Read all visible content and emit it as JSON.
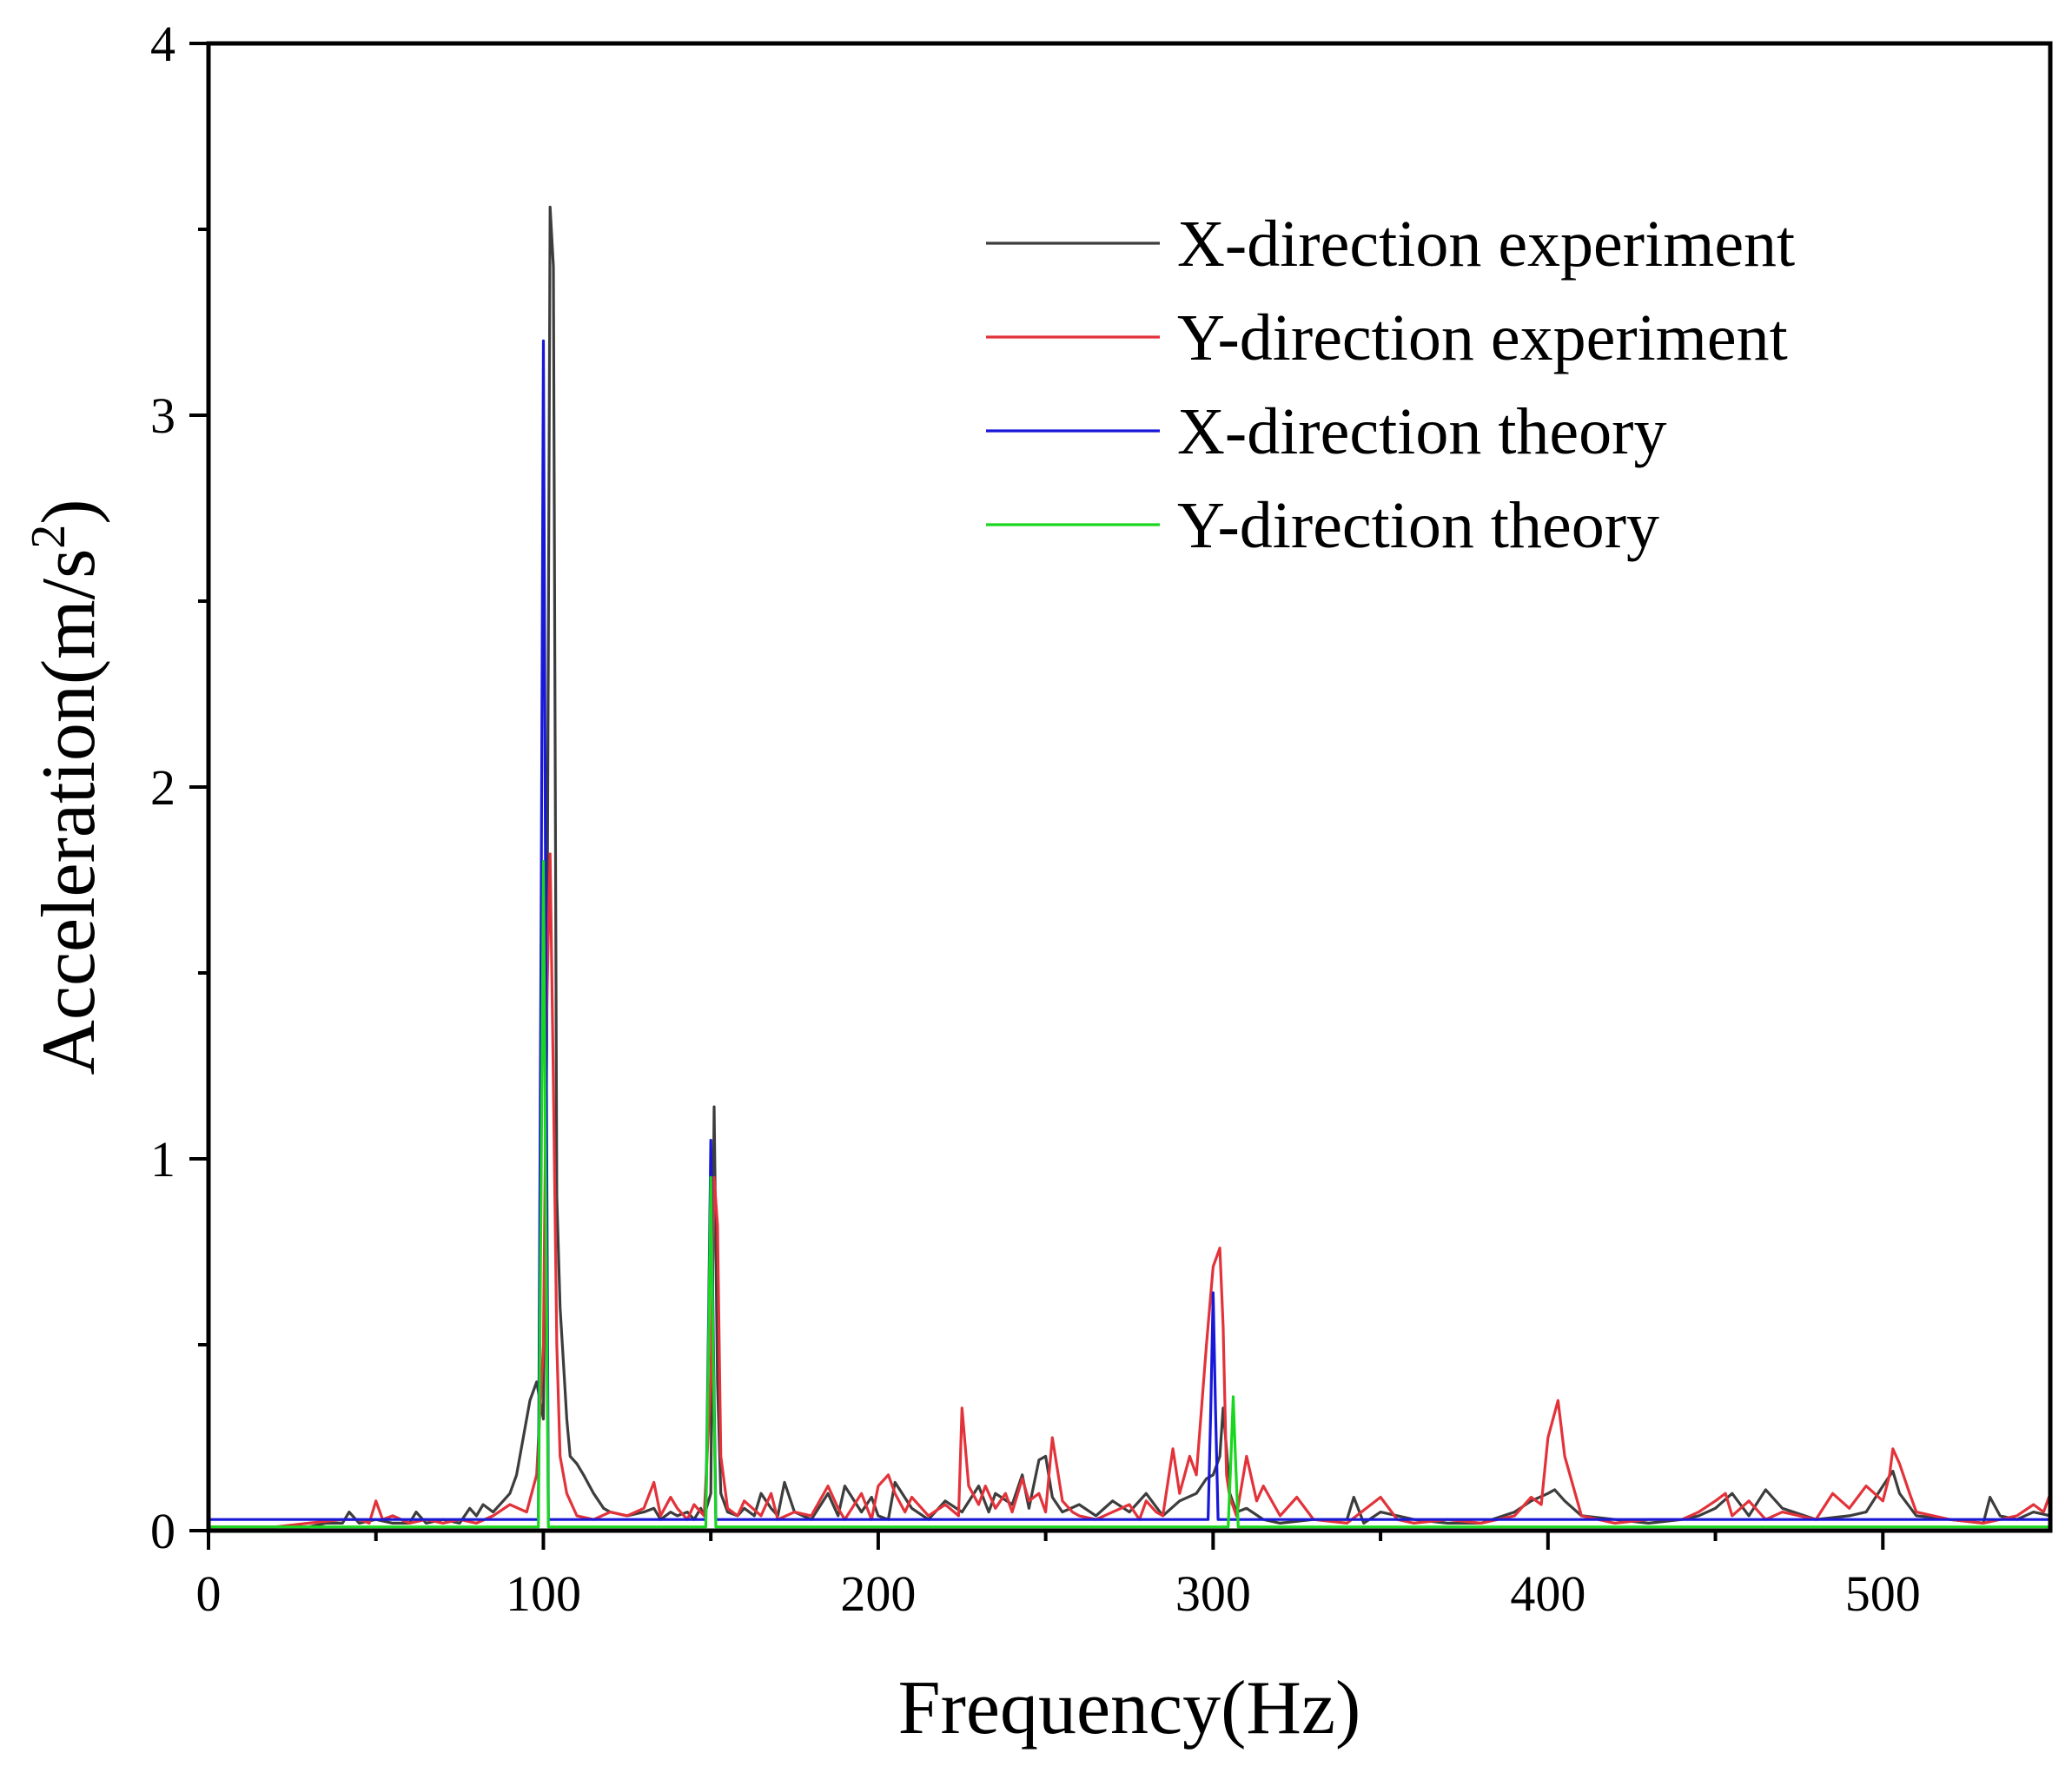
{
  "chart_data": {
    "type": "line",
    "title": "",
    "xlabel": "Frequency(Hz)",
    "ylabel_main": "Acceleration(m/s",
    "ylabel_sup": "2",
    "ylabel_close": ")",
    "xlim": [
      0,
      550
    ],
    "ylim": [
      0,
      4
    ],
    "xticks": [
      0,
      100,
      200,
      300,
      400,
      500
    ],
    "xtick_labels": [
      "0",
      "100",
      "200",
      "300",
      "400",
      "500"
    ],
    "xminor": [
      50,
      150,
      250,
      350,
      450
    ],
    "yticks": [
      0,
      1,
      2,
      3,
      4
    ],
    "ytick_labels": [
      "0",
      "1",
      "2",
      "3",
      "4"
    ],
    "yminor": [
      0.5,
      1.5,
      2.5,
      3.5
    ],
    "legend_position": "top-right",
    "series": [
      {
        "name": "X-direction experiment",
        "color": "#3d3d3d",
        "x": [
          0,
          5,
          10,
          15,
          20,
          25,
          30,
          35,
          40,
          42,
          45,
          50,
          55,
          60,
          62,
          65,
          70,
          75,
          78,
          80,
          82,
          85,
          88,
          90,
          92,
          94,
          96,
          98,
          100,
          101,
          102,
          103,
          104,
          105,
          106,
          107,
          108,
          110,
          112,
          115,
          118,
          120,
          125,
          130,
          133,
          135,
          138,
          140,
          143,
          145,
          147,
          148,
          150,
          151,
          152,
          153,
          155,
          158,
          160,
          163,
          165,
          168,
          170,
          172,
          175,
          180,
          185,
          188,
          190,
          195,
          198,
          200,
          203,
          205,
          210,
          215,
          220,
          225,
          230,
          233,
          235,
          240,
          243,
          245,
          248,
          250,
          252,
          255,
          260,
          265,
          270,
          275,
          280,
          285,
          290,
          295,
          298,
          300,
          302,
          303,
          304,
          305,
          307,
          310,
          315,
          320,
          330,
          340,
          342,
          345,
          350,
          360,
          370,
          380,
          390,
          395,
          400,
          402,
          405,
          410,
          420,
          430,
          440,
          445,
          450,
          455,
          460,
          465,
          470,
          480,
          490,
          495,
          500,
          503,
          505,
          510,
          520,
          530,
          532,
          535,
          540,
          545,
          550
        ],
        "y": [
          0.01,
          0.01,
          0.01,
          0.01,
          0.01,
          0.01,
          0.01,
          0.02,
          0.02,
          0.05,
          0.02,
          0.03,
          0.02,
          0.02,
          0.05,
          0.02,
          0.03,
          0.02,
          0.06,
          0.04,
          0.07,
          0.05,
          0.08,
          0.1,
          0.15,
          0.25,
          0.35,
          0.4,
          0.3,
          1.3,
          3.56,
          3.4,
          0.9,
          0.6,
          0.45,
          0.3,
          0.2,
          0.18,
          0.15,
          0.1,
          0.06,
          0.05,
          0.04,
          0.05,
          0.06,
          0.03,
          0.05,
          0.04,
          0.05,
          0.03,
          0.06,
          0.04,
          0.1,
          1.14,
          0.4,
          0.1,
          0.05,
          0.04,
          0.06,
          0.04,
          0.1,
          0.06,
          0.04,
          0.13,
          0.05,
          0.03,
          0.1,
          0.04,
          0.12,
          0.05,
          0.09,
          0.04,
          0.03,
          0.13,
          0.06,
          0.03,
          0.08,
          0.05,
          0.12,
          0.05,
          0.1,
          0.07,
          0.15,
          0.06,
          0.19,
          0.2,
          0.09,
          0.05,
          0.07,
          0.04,
          0.08,
          0.05,
          0.1,
          0.04,
          0.08,
          0.1,
          0.14,
          0.15,
          0.2,
          0.33,
          0.22,
          0.1,
          0.05,
          0.06,
          0.03,
          0.02,
          0.03,
          0.03,
          0.09,
          0.02,
          0.05,
          0.03,
          0.02,
          0.02,
          0.05,
          0.08,
          0.1,
          0.11,
          0.08,
          0.04,
          0.03,
          0.02,
          0.03,
          0.04,
          0.06,
          0.1,
          0.04,
          0.11,
          0.06,
          0.03,
          0.04,
          0.05,
          0.12,
          0.16,
          0.1,
          0.04,
          0.03,
          0.02,
          0.09,
          0.04,
          0.03,
          0.05,
          0.04
        ]
      },
      {
        "name": "Y-direction experiment",
        "color": "#e2333a",
        "x": [
          0,
          10,
          20,
          30,
          40,
          45,
          48,
          50,
          52,
          55,
          60,
          65,
          70,
          75,
          80,
          85,
          90,
          95,
          98,
          100,
          101,
          102,
          103,
          104,
          105,
          107,
          110,
          115,
          120,
          125,
          130,
          133,
          135,
          138,
          140,
          143,
          145,
          148,
          150,
          151,
          152,
          153,
          155,
          158,
          160,
          165,
          168,
          170,
          175,
          180,
          185,
          188,
          190,
          195,
          198,
          200,
          203,
          205,
          208,
          210,
          215,
          220,
          224,
          225,
          227,
          230,
          232,
          235,
          238,
          240,
          243,
          245,
          248,
          250,
          252,
          255,
          258,
          260,
          265,
          270,
          275,
          278,
          280,
          283,
          285,
          288,
          290,
          293,
          295,
          298,
          300,
          302,
          303,
          304,
          305,
          307,
          310,
          313,
          315,
          320,
          325,
          330,
          340,
          350,
          355,
          360,
          370,
          380,
          390,
          395,
          398,
          400,
          403,
          405,
          410,
          420,
          430,
          440,
          445,
          450,
          453,
          455,
          460,
          465,
          470,
          480,
          485,
          490,
          495,
          500,
          502,
          503,
          505,
          508,
          510,
          520,
          530,
          540,
          545,
          548,
          550
        ],
        "y": [
          0.01,
          0.01,
          0.01,
          0.02,
          0.03,
          0.03,
          0.02,
          0.08,
          0.03,
          0.04,
          0.02,
          0.03,
          0.02,
          0.03,
          0.02,
          0.04,
          0.07,
          0.05,
          0.15,
          0.5,
          1.4,
          1.82,
          1.2,
          0.5,
          0.2,
          0.1,
          0.04,
          0.03,
          0.05,
          0.04,
          0.06,
          0.13,
          0.04,
          0.09,
          0.06,
          0.03,
          0.07,
          0.04,
          0.4,
          0.95,
          0.82,
          0.2,
          0.06,
          0.04,
          0.08,
          0.04,
          0.1,
          0.03,
          0.05,
          0.04,
          0.12,
          0.06,
          0.03,
          0.1,
          0.03,
          0.12,
          0.15,
          0.1,
          0.05,
          0.09,
          0.04,
          0.07,
          0.04,
          0.33,
          0.12,
          0.07,
          0.12,
          0.06,
          0.1,
          0.05,
          0.14,
          0.08,
          0.1,
          0.05,
          0.25,
          0.08,
          0.05,
          0.04,
          0.03,
          0.05,
          0.07,
          0.03,
          0.08,
          0.05,
          0.04,
          0.22,
          0.1,
          0.2,
          0.15,
          0.5,
          0.71,
          0.76,
          0.55,
          0.15,
          0.09,
          0.04,
          0.2,
          0.08,
          0.12,
          0.04,
          0.09,
          0.03,
          0.02,
          0.09,
          0.03,
          0.02,
          0.03,
          0.02,
          0.04,
          0.09,
          0.07,
          0.25,
          0.35,
          0.2,
          0.04,
          0.02,
          0.03,
          0.03,
          0.05,
          0.08,
          0.1,
          0.04,
          0.08,
          0.03,
          0.05,
          0.03,
          0.1,
          0.06,
          0.12,
          0.08,
          0.15,
          0.22,
          0.18,
          0.1,
          0.05,
          0.03,
          0.02,
          0.04,
          0.07,
          0.05,
          0.1
        ]
      },
      {
        "name": "X-direction theory",
        "color": "#1818d8",
        "x": [
          0,
          98.5,
          99.3,
          100,
          100.7,
          101.5,
          148.5,
          149.3,
          150,
          150.7,
          151.5,
          298.5,
          299.3,
          300,
          300.7,
          301.5,
          550
        ],
        "y": [
          0.03,
          0.03,
          1.6,
          3.2,
          1.6,
          0.03,
          0.03,
          0.55,
          1.05,
          0.55,
          0.03,
          0.03,
          0.33,
          0.64,
          0.33,
          0.03,
          0.03
        ]
      },
      {
        "name": "Y-direction theory",
        "color": "#19d61f",
        "x": [
          0,
          98.5,
          99.3,
          100,
          100.7,
          101.5,
          148.5,
          149.3,
          150,
          150.7,
          151.5,
          304.5,
          305.3,
          306,
          306.7,
          307.5,
          550
        ],
        "y": [
          0.01,
          0.01,
          0.9,
          1.8,
          0.9,
          0.01,
          0.01,
          0.48,
          0.95,
          0.48,
          0.01,
          0.01,
          0.19,
          0.36,
          0.19,
          0.01,
          0.01
        ]
      }
    ]
  }
}
